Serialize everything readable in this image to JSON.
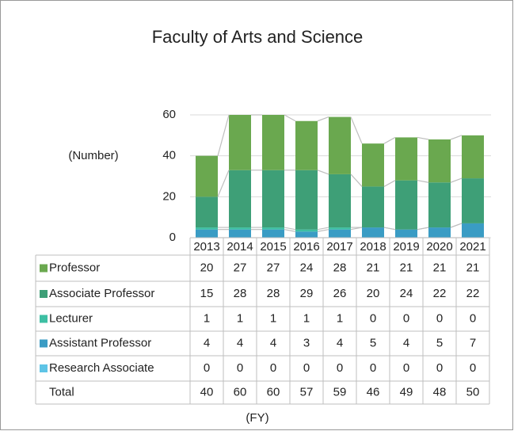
{
  "chart_data": {
    "type": "stacked_bar",
    "title": "Faculty of Arts and Science",
    "y_label": "(Number)",
    "x_label": "(FY)",
    "categories": [
      "2013",
      "2014",
      "2015",
      "2016",
      "2017",
      "2018",
      "2019",
      "2020",
      "2021"
    ],
    "series": [
      {
        "name": "Professor",
        "color": "#6aa84f",
        "values": [
          20,
          27,
          27,
          24,
          28,
          21,
          21,
          21,
          21
        ]
      },
      {
        "name": "Associate Professor",
        "color": "#3e9f77",
        "values": [
          15,
          28,
          28,
          29,
          26,
          20,
          24,
          22,
          22
        ]
      },
      {
        "name": "Lecturer",
        "color": "#3dbfa3",
        "values": [
          1,
          1,
          1,
          1,
          1,
          0,
          0,
          0,
          0
        ]
      },
      {
        "name": "Assistant Professor",
        "color": "#3a9cc4",
        "values": [
          4,
          4,
          4,
          3,
          4,
          5,
          4,
          5,
          7
        ]
      },
      {
        "name": "Research Associate",
        "color": "#5ec4e6",
        "values": [
          0,
          0,
          0,
          0,
          0,
          0,
          0,
          0,
          0
        ]
      }
    ],
    "total_label": "Total",
    "totals": [
      40,
      60,
      60,
      57,
      59,
      46,
      49,
      48,
      50
    ],
    "ylim": [
      0,
      60
    ],
    "yticks": [
      0,
      20,
      40,
      60
    ],
    "grid": true
  }
}
